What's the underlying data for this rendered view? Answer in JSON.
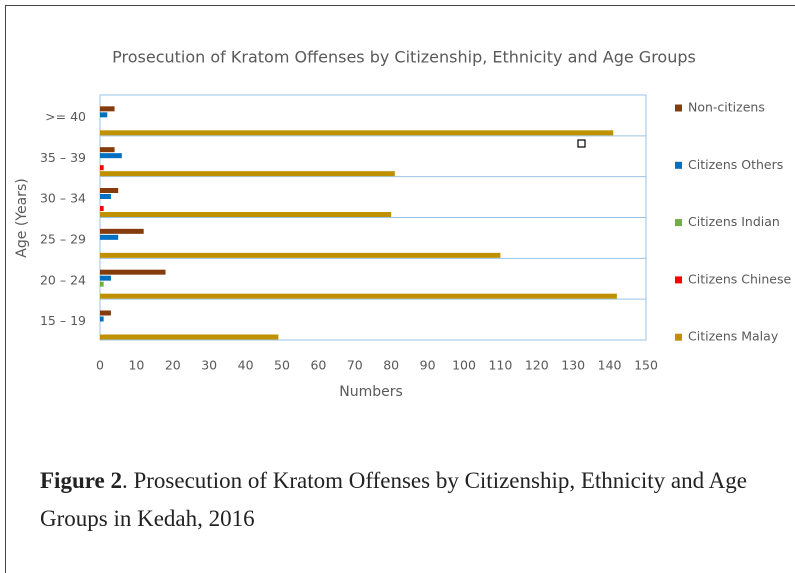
{
  "chart_data": {
    "type": "bar",
    "orientation": "horizontal",
    "title": "Prosecution of Kratom Offenses by Citizenship, Ethnicity and Age Groups",
    "x_label": "Numbers",
    "y_label": "Age (Years)",
    "categories": [
      "15 – 19",
      "20 – 24",
      "25 – 29",
      "30 – 34",
      "35 – 39",
      ">= 40"
    ],
    "series": [
      {
        "name": "Citizens Malay",
        "color": "#bf9000",
        "values": [
          49,
          142,
          110,
          80,
          81,
          141
        ]
      },
      {
        "name": "Citizens Chinese",
        "color": "#ff0000",
        "values": [
          0,
          0,
          0,
          1,
          1,
          0
        ]
      },
      {
        "name": "Citizens Indian",
        "color": "#70ad47",
        "values": [
          0,
          1,
          0,
          0,
          0,
          0
        ]
      },
      {
        "name": "Citizens Others",
        "color": "#0070c0",
        "values": [
          1,
          3,
          5,
          3,
          6,
          2
        ]
      },
      {
        "name": "Non-citizens",
        "color": "#843c0c",
        "values": [
          3,
          18,
          12,
          5,
          4,
          4
        ]
      }
    ],
    "xlim": [
      0,
      150
    ],
    "xticks": [
      0,
      10,
      20,
      30,
      40,
      50,
      60,
      70,
      80,
      90,
      100,
      110,
      120,
      130,
      140,
      150
    ],
    "legend": "right"
  },
  "caption": {
    "label": "Figure 2",
    "text": ". Prosecution of Kratom Offenses by Citizenship, Ethnicity and Age Groups in Kedah, 2016"
  }
}
